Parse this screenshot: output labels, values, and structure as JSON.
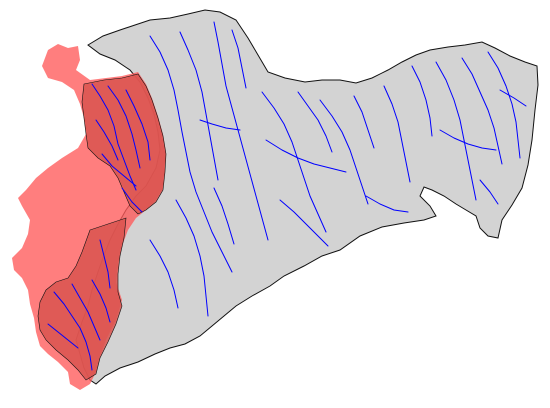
{
  "map": {
    "colors": {
      "background": "#ffffff",
      "land_fill": "#d3d3d3",
      "land_stroke": "#111111",
      "river": "#0000ff",
      "highlight_fill": "#ff5a5a",
      "highlight_opacity": 0.78,
      "highlight_stroke": "#111111"
    }
  }
}
